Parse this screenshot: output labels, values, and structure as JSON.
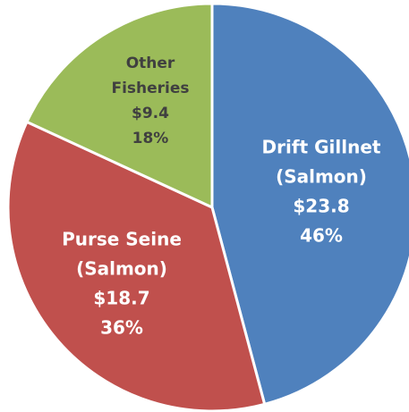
{
  "chart_data": {
    "type": "pie",
    "categories": [
      [
        "Drift Gillnet",
        "(Salmon)"
      ],
      [
        "Purse Seine",
        "(Salmon)"
      ],
      [
        "Other",
        "Fisheries"
      ]
    ],
    "values": [
      23.8,
      18.7,
      9.4
    ],
    "value_labels": [
      "$23.8",
      "$18.7",
      "$9.4"
    ],
    "percentages": [
      46,
      36,
      18
    ],
    "percentage_labels": [
      "46%",
      "36%",
      "18%"
    ],
    "colors": [
      "#4f81bd",
      "#c0504d",
      "#9bbb59"
    ],
    "label_colors": [
      "#ffffff",
      "#ffffff",
      "#404040"
    ]
  }
}
